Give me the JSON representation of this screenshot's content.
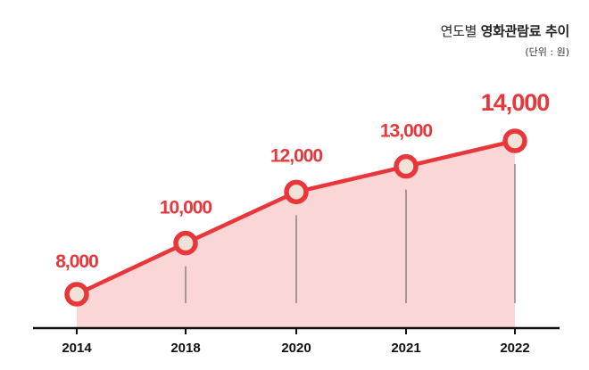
{
  "chart_data": {
    "type": "area",
    "title_prefix": "연도별",
    "title_main": "영화관람료 추이",
    "unit_note": "(단위 : 원)",
    "categories": [
      "2014",
      "2018",
      "2020",
      "2021",
      "2022"
    ],
    "values": [
      8000,
      10000,
      12000,
      13000,
      14000
    ],
    "value_labels": [
      "8,000",
      "10,000",
      "12,000",
      "13,000",
      "14,000"
    ],
    "xlabel": "",
    "ylabel": "",
    "ylim": [
      6500,
      15000
    ],
    "grid": false,
    "legend": "none",
    "colors": {
      "line": "#e8363a",
      "fill": "#fbd6d6",
      "marker_fill": "#efe3d8",
      "axis": "#111111",
      "drop_line": "#555555"
    }
  }
}
